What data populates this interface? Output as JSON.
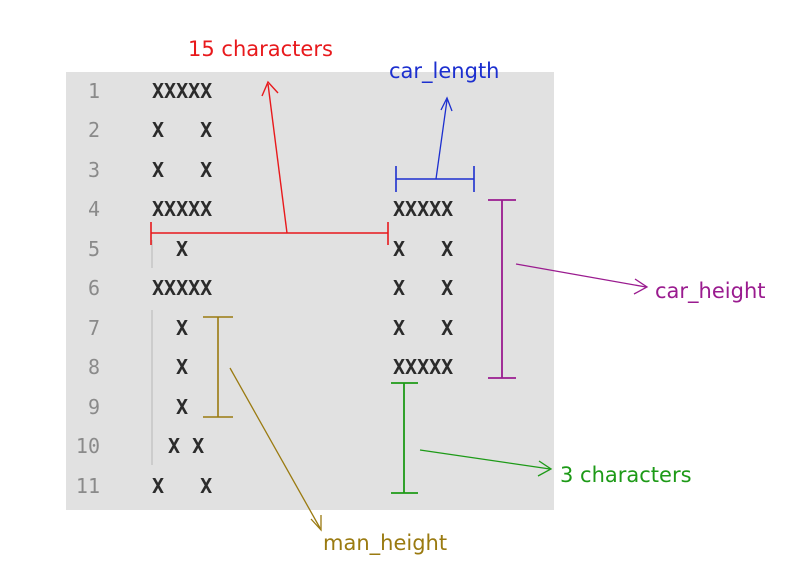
{
  "editor": {
    "lines": [
      {
        "num": "1",
        "text": "XXXXX"
      },
      {
        "num": "2",
        "text": "X   X"
      },
      {
        "num": "3",
        "text": "X   X"
      },
      {
        "num": "4",
        "text": "XXXXX",
        "car": "XXXXX"
      },
      {
        "num": "5",
        "text": " X",
        "car": "X   X"
      },
      {
        "num": "6",
        "text": "XXXXX",
        "car": "X   X"
      },
      {
        "num": "7",
        "text": " X",
        "car": "X   X"
      },
      {
        "num": "8",
        "text": " X",
        "car": "XXXXX"
      },
      {
        "num": "9",
        "text": " X"
      },
      {
        "num": "10",
        "text": "X X"
      },
      {
        "num": "11",
        "text": "X   X"
      }
    ]
  },
  "annotations": {
    "chars15": {
      "text": "15 characters",
      "color": "#e8191c"
    },
    "car_length": {
      "text": "car_length",
      "color": "#1c2fcf"
    },
    "car_height": {
      "text": "car_height",
      "color": "#9a1b8f"
    },
    "chars3": {
      "text": "3 characters",
      "color": "#1d9a17"
    },
    "man_height": {
      "text": "man_height",
      "color": "#9a7a10"
    }
  }
}
